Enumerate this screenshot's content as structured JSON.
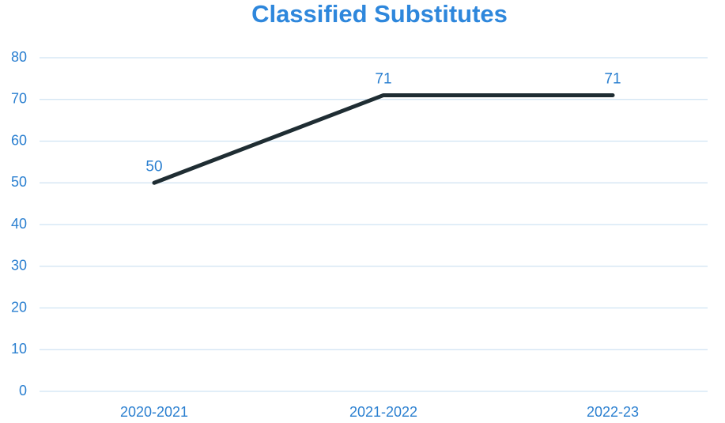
{
  "chart_data": {
    "type": "line",
    "title": "Classified Substitutes",
    "categories": [
      "2020-2021",
      "2021-2022",
      "2022-23"
    ],
    "values": [
      50,
      71,
      71
    ],
    "color": "#1f2d33",
    "ylim": [
      0,
      80
    ],
    "yticks": [
      0,
      10,
      20,
      30,
      40,
      50,
      60,
      70,
      80
    ],
    "grid": true
  }
}
